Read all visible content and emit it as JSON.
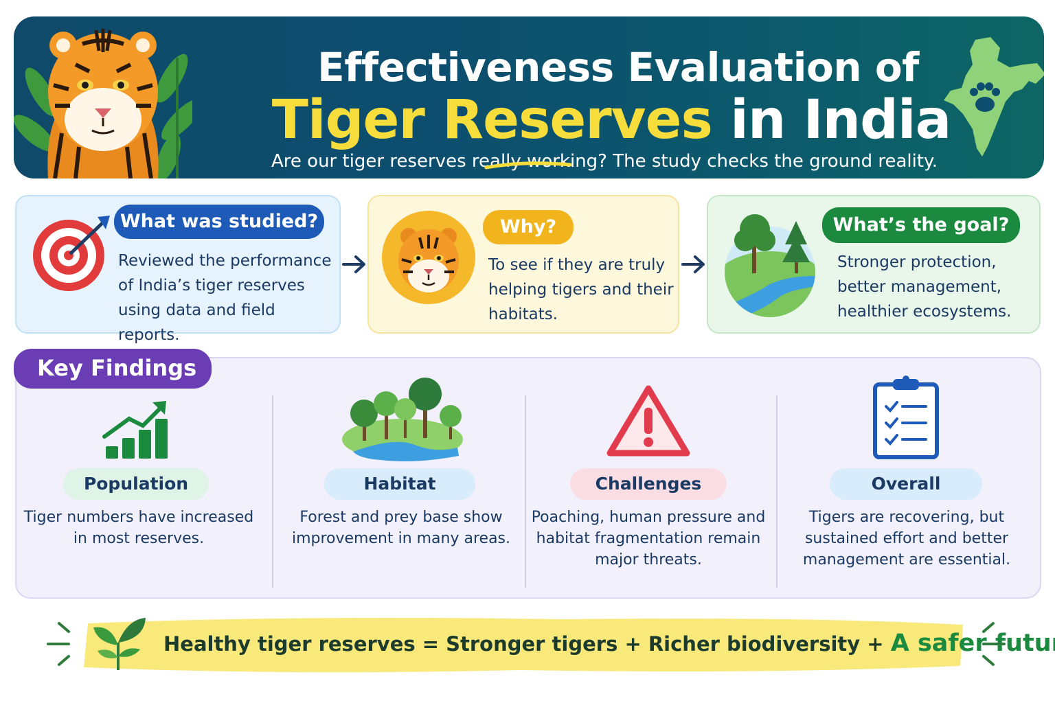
{
  "header": {
    "title_line1": "Effectiveness Evaluation of",
    "title_accent": "Tiger Reserves",
    "title_rest": "in India",
    "subtitle": "Are our tiger reserves really working? The study checks the ground reality.",
    "icons": [
      "tiger-icon",
      "india-map-icon",
      "paw-icon"
    ]
  },
  "cards": {
    "studied": {
      "title": "What was studied?",
      "text": "Reviewed the performance of India’s tiger reserves using data and field reports.",
      "icon": "target-icon"
    },
    "why": {
      "title": "Why?",
      "text": "To see if they are truly helping tigers and their habitats.",
      "icon": "tiger-face-icon"
    },
    "goal": {
      "title": "What’s the goal?",
      "text": "Stronger protection, better management, healthier ecosystems.",
      "icon": "landscape-icon"
    }
  },
  "findings": {
    "heading": "Key Findings",
    "items": [
      {
        "label": "Population",
        "text": "Tiger numbers have increased in most reserves.",
        "icon": "growth-chart-icon",
        "color": "#dff3e6"
      },
      {
        "label": "Habitat",
        "text": "Forest and prey base show improvement in many areas.",
        "icon": "forest-icon",
        "color": "#d8ecfb"
      },
      {
        "label": "Challenges",
        "text": "Poaching, human pressure and habitat fragmentation remain major threats.",
        "icon": "warning-icon",
        "color": "#fbdde4"
      },
      {
        "label": "Overall",
        "text": "Tigers are recovering, but sustained effort and better management are essential.",
        "icon": "checklist-icon",
        "color": "#d8ecfb"
      }
    ]
  },
  "footer": {
    "text": "Healthy tiger reserves = Stronger tigers + Richer biodiversity +",
    "accent": "A safer future",
    "icon": "sprout-icon"
  },
  "colors": {
    "banner": "#0f4a6a",
    "accent_yellow": "#f6dd3c",
    "blue": "#1e5bb8",
    "yellow": "#f2b41c",
    "green": "#1c8a3e",
    "purple": "#6a3db5"
  }
}
